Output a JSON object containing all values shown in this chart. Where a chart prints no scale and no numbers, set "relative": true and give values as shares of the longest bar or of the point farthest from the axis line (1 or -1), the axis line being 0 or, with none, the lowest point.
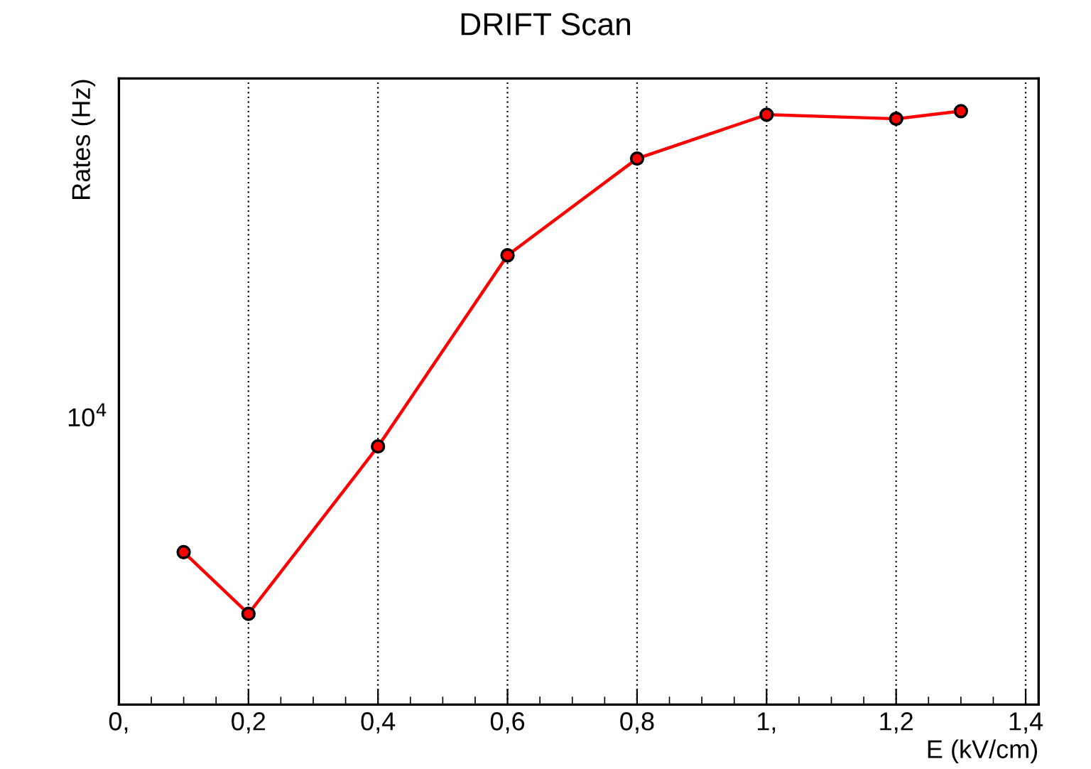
{
  "chart_data": {
    "type": "line",
    "title": "DRIFT Scan",
    "xlabel": "E (kV/cm)",
    "ylabel": "Rates (Hz)",
    "x": [
      0.1,
      0.2,
      0.4,
      0.6,
      0.8,
      1.0,
      1.2,
      1.3
    ],
    "series": [
      {
        "color": "#ff0000",
        "values": [
          0.257,
          0.153,
          0.435,
          0.757,
          0.92,
          0.994,
          0.987,
          1
        ]
      }
    ],
    "relative": true,
    "xlim": [
      0,
      1.42
    ],
    "xticks": [
      {
        "value": 0,
        "label": "0,"
      },
      {
        "value": 0.2,
        "label": "0,2"
      },
      {
        "value": 0.4,
        "label": "0,4"
      },
      {
        "value": 0.6,
        "label": "0,6"
      },
      {
        "value": 0.8,
        "label": "0,8"
      },
      {
        "value": 1.0,
        "label": "1,"
      },
      {
        "value": 1.2,
        "label": "1,2"
      },
      {
        "value": 1.4,
        "label": "1,4"
      }
    ],
    "annotations": [
      "10$^{4}$"
    ],
    "grid": "x",
    "marker": "circle",
    "line_style": "solid"
  }
}
